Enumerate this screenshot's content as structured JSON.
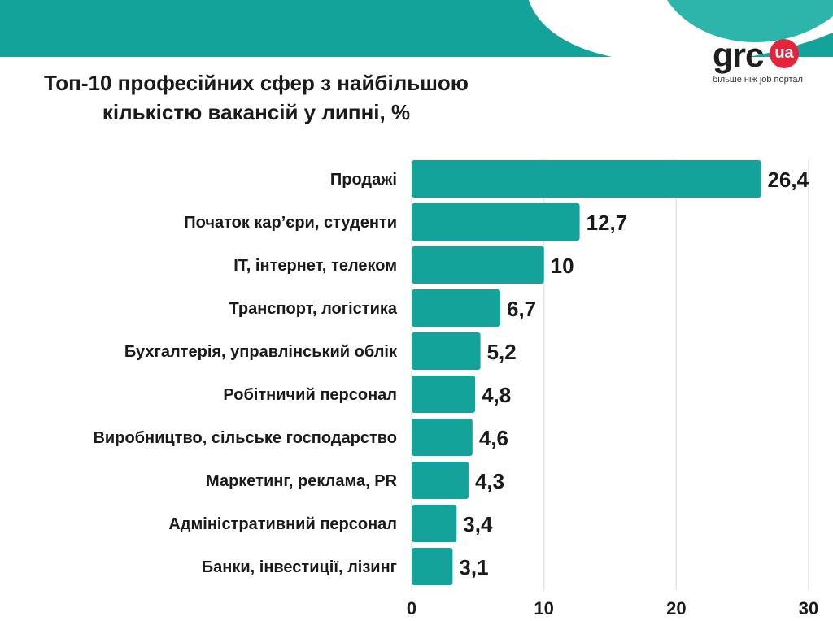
{
  "title_line1": "Топ-10 професійних сфер з найбільшою",
  "title_line2": "кількістю вакансій у липні, %",
  "logo": {
    "word": "grc",
    "badge": "ua",
    "tagline": "більше ніж job портал"
  },
  "colors": {
    "bar": "#14a39a",
    "header": "#14a39a",
    "header_light": "#2bb5ab",
    "logo_badge": "#e5243b",
    "grid": "#e3e3e3"
  },
  "chart_data": {
    "type": "bar",
    "orientation": "horizontal",
    "title": "Топ-10 професійних сфер з найбільшою кількістю вакансій у липні, %",
    "categories": [
      "Продажі",
      "Початок кар’єри, студенти",
      "IT, інтернет, телеком",
      "Транспорт, логістика",
      "Бухгалтерія, управлінський облік",
      "Робітничий персонал",
      "Виробництво, сільське господарство",
      "Маркетинг, реклама, PR",
      "Адміністративний персонал",
      "Банки, інвестиції, лізинг"
    ],
    "values": [
      26.4,
      12.7,
      10,
      6.7,
      5.2,
      4.8,
      4.6,
      4.3,
      3.4,
      3.1
    ],
    "value_labels": [
      "26,4",
      "12,7",
      "10",
      "6,7",
      "5,2",
      "4,8",
      "4,6",
      "4,3",
      "3,4",
      "3,1"
    ],
    "xlim": [
      0,
      30
    ],
    "xticks": [
      0,
      10,
      20,
      30
    ],
    "xtick_labels": [
      "0",
      "10",
      "20",
      "30"
    ],
    "xlabel": "",
    "ylabel": "",
    "grid": true,
    "legend": "none"
  }
}
